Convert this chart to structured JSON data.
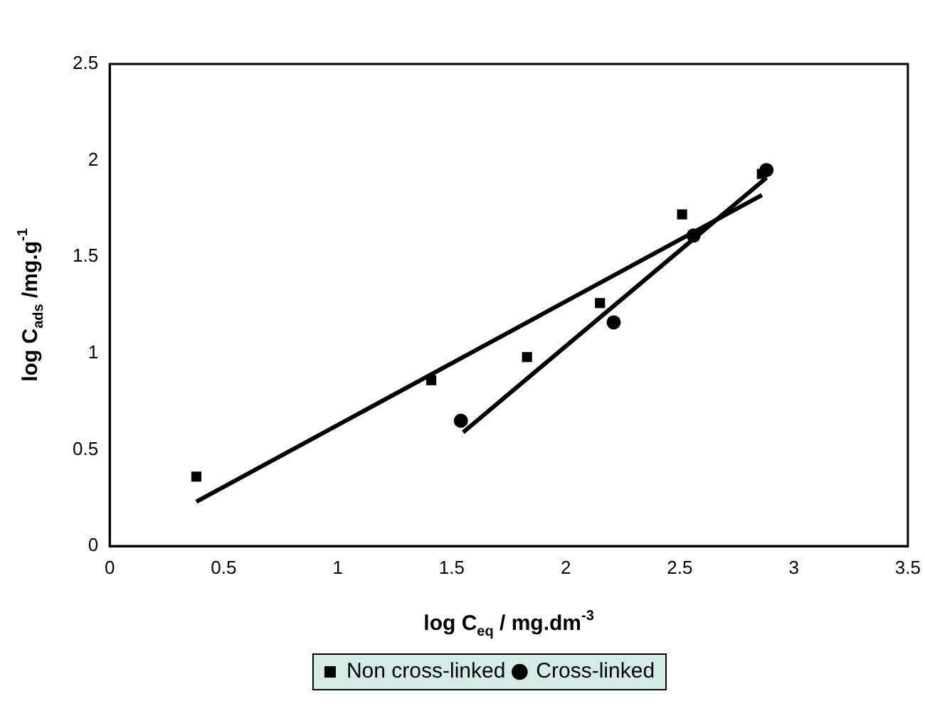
{
  "chart_data": {
    "type": "scatter",
    "xlabel": "log C$_{eq}$ / mg.dm$^{-3}$",
    "ylabel": "log C$_{ads}$ /mg.g$^{-1}$",
    "xlim": [
      0,
      3.5
    ],
    "xticks": [
      0,
      0.5,
      1,
      1.5,
      2,
      2.5,
      3,
      3.5
    ],
    "ylim": [
      0,
      2.5
    ],
    "yticks": [
      0,
      0.5,
      1,
      1.5,
      2,
      2.5
    ],
    "grid": false,
    "legend": "bottom",
    "series": [
      {
        "name": "Non cross-linked",
        "color": "#000000",
        "marker": "square",
        "x": [
          0.38,
          1.41,
          1.83,
          2.15,
          2.51,
          2.86
        ],
        "values": [
          0.36,
          0.86,
          0.98,
          1.26,
          1.72,
          1.93
        ]
      },
      {
        "name": "Cross-linked",
        "color": "#000000",
        "marker": "circle",
        "x": [
          1.54,
          2.21,
          2.56,
          2.88
        ],
        "values": [
          0.65,
          1.16,
          1.61,
          1.95
        ]
      },
      {
        "type": "line",
        "color": "#000000",
        "marker": "none",
        "x": [
          0.38,
          2.86
        ],
        "values": [
          0.23,
          1.82
        ]
      },
      {
        "type": "line",
        "color": "#000000",
        "marker": "none",
        "x": [
          1.55,
          2.88
        ],
        "values": [
          0.59,
          1.91
        ]
      }
    ]
  }
}
